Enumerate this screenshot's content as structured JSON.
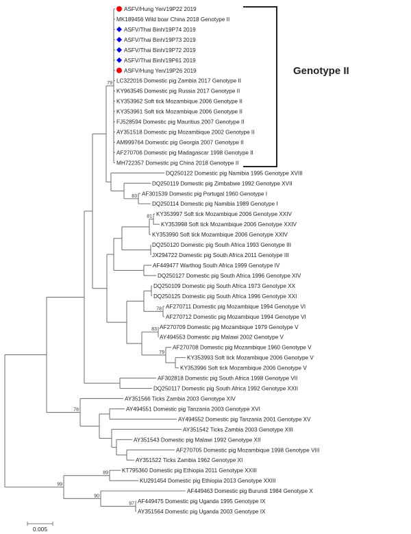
{
  "colors": {
    "hung_yen_marker": "#ff0000",
    "thai_binh_marker": "#0000ff",
    "branch": "#777777",
    "bracket": "#222222"
  },
  "leaves": [
    {
      "label": "ASFV/Hung Yen/19P22 2019",
      "marker": "red-circle"
    },
    {
      "label": "MK189456 Wild boar China 2018 Genotype II"
    },
    {
      "label": "ASFV/Thai Binh/19P74 2019",
      "marker": "blue-diamond"
    },
    {
      "label": "ASFV/Thai Binh/19P73 2019",
      "marker": "blue-diamond"
    },
    {
      "label": "ASFV/Thai Binh/19P72 2019",
      "marker": "blue-diamond"
    },
    {
      "label": "ASFV/Thai Binh/19P61 2019",
      "marker": "blue-diamond"
    },
    {
      "label": "ASFV/Hung Yen/19P26 2019",
      "marker": "red-circle"
    },
    {
      "label": "LC322016 Domestic pig Zambia 2017 Genotype II"
    },
    {
      "label": "KY963545 Domestic pig Russia 2017 Genotype II"
    },
    {
      "label": "KY353962 Soft tick Mozambique 2006 Genotype II"
    },
    {
      "label": "KY353961 Soft tick Mozambique 2006 Genotype II"
    },
    {
      "label": "FJ528594 Domestic pig Mauritius 2007 Genotype II"
    },
    {
      "label": "AY351518 Domestic pig Mozambique 2002 Genotype II"
    },
    {
      "label": "AM999764 Domestic pig Georgia 2007 Genotype II"
    },
    {
      "label": "AF270706 Domestic pig Madagascar 1998 Genotype II"
    },
    {
      "label": "MH722357 Domestic pig China 2018 Genotype II"
    },
    {
      "label": "DQ250122 Domestic pig Namibia 1995 Genotype XVIII"
    },
    {
      "label": "DQ250119 Domestic pig Zimbabwe 1992 Genotype XVII"
    },
    {
      "label": "AF301539 Domestic pig Portugal 1960 Genotype I"
    },
    {
      "label": "DQ250114 Domestic pig Namibia 1989 Genotype I"
    },
    {
      "label": "KY353997 Soft tick Mozambique 2006 Genotype XXIV"
    },
    {
      "label": "KY353998 Soft tick Mozambique 2006 Genotype XXIV"
    },
    {
      "label": "KY353990 Soft tick Mozambique 2006 Genotype XXIV"
    },
    {
      "label": "DQ250120 Domestic pig South Africa 1993 Genotype III"
    },
    {
      "label": "JX294722 Domestic pig South Africa 2011 Genotype III"
    },
    {
      "label": "AF449477 Warthog South Africa 1999 Genotype IV"
    },
    {
      "label": "DQ250127 Domestic pig South Africa 1996 Genotype XIV"
    },
    {
      "label": "DQ250109 Domestic pig South Africa 1973 Genotype XX"
    },
    {
      "label": "DQ250125 Domestic pig South Africa 1996 Genotype XXI"
    },
    {
      "label": "AF270711 Domestic pig Mozambique 1994 Genotype VI"
    },
    {
      "label": "AF270712 Domestic pig Mozambique 1994 Genotype VI"
    },
    {
      "label": "AF270709 Domestic pig Mozambique 1979 Genotype V"
    },
    {
      "label": "AY494553 Domestic pig Malawi 2002 Genotype V"
    },
    {
      "label": "AF270708 Domestic pig Mozambique 1960 Genotype V"
    },
    {
      "label": "KY353993 Soft tick Mozambique 2006 Genotype V"
    },
    {
      "label": "KY353996 Soft tick Mozambique 2006 Genotype V"
    },
    {
      "label": "AF302818 Domestic pig South Africa 1998 Genotype VII"
    },
    {
      "label": "DQ250117 Domestic pig South Africa 1992 Genotype XXII"
    },
    {
      "label": "AY351566 Ticks Zambia 2003 Genotype XIV"
    },
    {
      "label": "AY494551 Domestic pig Tanzania 2003 Genotype XVI"
    },
    {
      "label": "AY494552 Domestic pig Tanzania 2001 Genotype XV"
    },
    {
      "label": "AY351542 Ticks Zambia 2003 Genotype XIII"
    },
    {
      "label": "AY351543 Domestic pig Malawi 1992 Genotype XII"
    },
    {
      "label": "AF270705 Domestic pig Mozambique 1998 Genotype VIII"
    },
    {
      "label": "AY351522 Ticks Zambia 1962 Genotype XI"
    },
    {
      "label": "KT795360 Domestic pig Ethiopia 2011 Genotype XXIII"
    },
    {
      "label": "KU291454 Domestic pig Ethiopia 2013 Genotype XXIII"
    },
    {
      "label": "AF449463 Domestic pig Burundi 1984 Genotype X"
    },
    {
      "label": "AF449475 Domestic pig Uganda 1995 Genotype IX"
    },
    {
      "label": "AY351564 Domestic pig Uganda 2003 Genotype IX"
    }
  ],
  "bootstraps": {
    "g2": "79",
    "n83a": "83",
    "n81": "81",
    "n78b": "78",
    "n83b": "83",
    "n79b": "79",
    "n78": "78",
    "n99": "99",
    "n89": "89",
    "n90": "90",
    "n97": "97"
  },
  "clade_label": "Genotype II",
  "scale_bar": "0.005"
}
